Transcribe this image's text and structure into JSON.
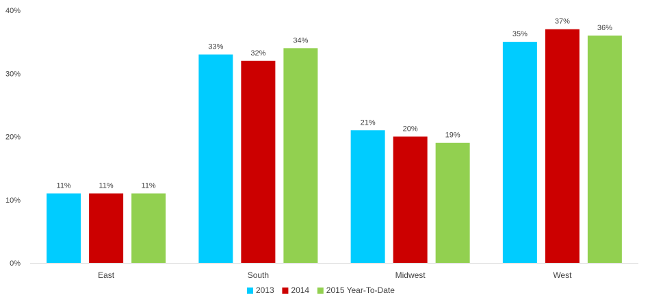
{
  "chart_data": {
    "type": "bar",
    "title": "",
    "xlabel": "",
    "ylabel": "",
    "categories": [
      "East",
      "South",
      "Midwest",
      "West"
    ],
    "series": [
      {
        "name": "2013",
        "color": "#00CCFF",
        "values": [
          11,
          33,
          21,
          35
        ],
        "labels": [
          "11%",
          "33%",
          "21%",
          "35%"
        ]
      },
      {
        "name": "2014",
        "color": "#CC0000",
        "values": [
          11,
          32,
          20,
          37
        ],
        "labels": [
          "11%",
          "32%",
          "20%",
          "37%"
        ]
      },
      {
        "name": "2015 Year-To-Date",
        "color": "#92D050",
        "values": [
          11,
          34,
          19,
          36
        ],
        "labels": [
          "11%",
          "34%",
          "19%",
          "36%"
        ]
      }
    ],
    "ylim": [
      0,
      40
    ],
    "yticks": [
      {
        "value": 0,
        "label": "0%"
      },
      {
        "value": 10,
        "label": "10%"
      },
      {
        "value": 20,
        "label": "20%"
      },
      {
        "value": 30,
        "label": "30%"
      },
      {
        "value": 40,
        "label": "40%"
      }
    ],
    "grid": false,
    "legend": "bottom-center",
    "axis_color": "#D9D9D9"
  }
}
